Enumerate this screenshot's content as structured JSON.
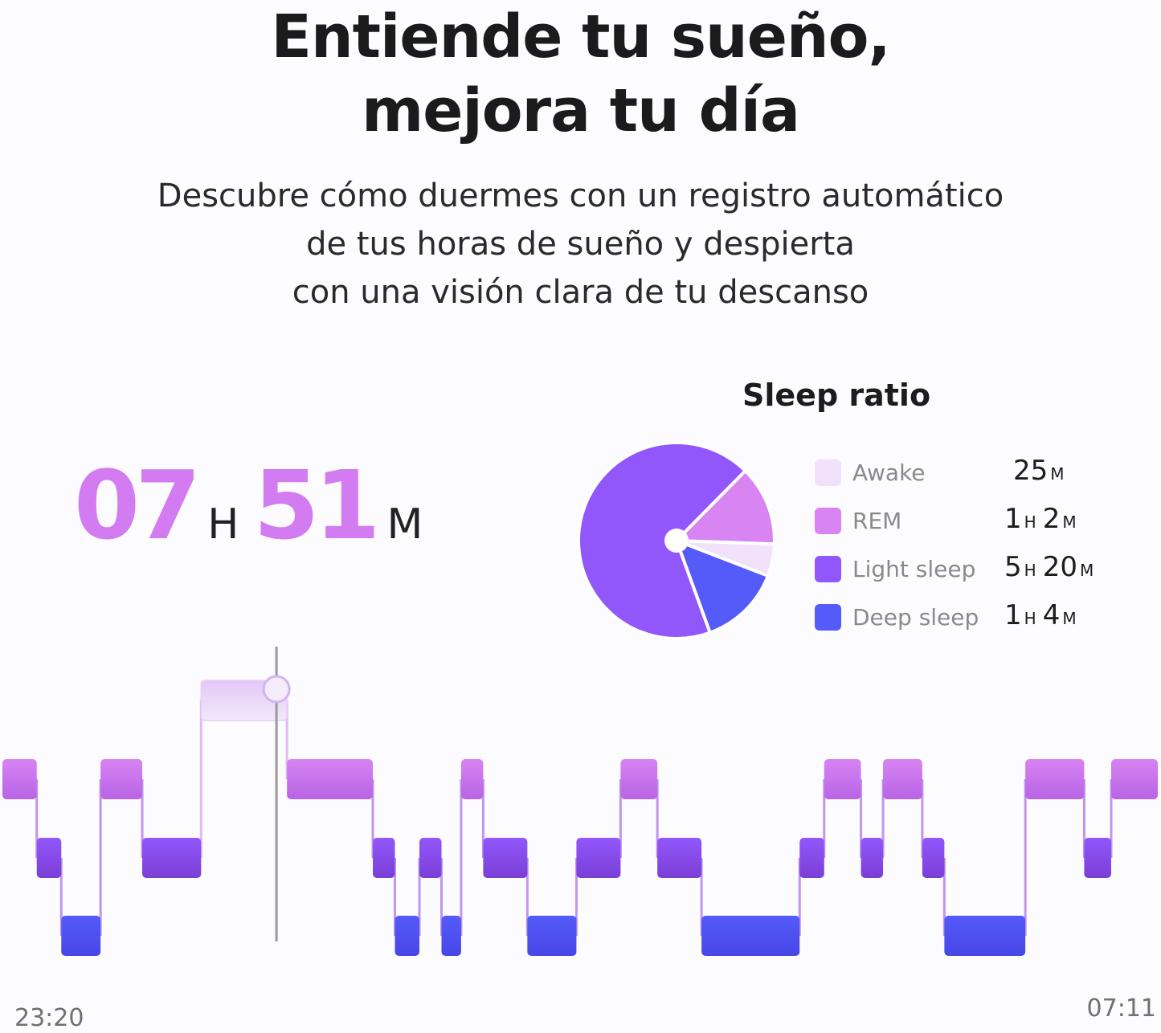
{
  "headline": {
    "line1": "Entiende tu sueño,",
    "line2": "mejora tu día"
  },
  "subhead": {
    "line1": "Descubre cómo duermes con un registro automático",
    "line2": "de tus horas de sueño y despierta",
    "line3": "con una visión clara de tu descanso"
  },
  "total_sleep": {
    "hours": "07",
    "hours_unit": "H",
    "minutes": "51",
    "minutes_unit": "M"
  },
  "colors": {
    "awake": "#f1e1fb",
    "rem": "#d884f3",
    "light": "#9257fb",
    "deep": "#545bf8",
    "rem_bar": "#b864e6",
    "light_bar": "#7a3fd6",
    "deep_bar": "#4846e6"
  },
  "chart_data": [
    {
      "type": "pie",
      "title": "Sleep ratio",
      "slices": [
        {
          "name": "Awake",
          "minutes": 25,
          "h": "",
          "h_unit": "",
          "m": "25",
          "m_unit": "M",
          "color": "#f1e1fb"
        },
        {
          "name": "REM",
          "minutes": 62,
          "h": "1",
          "h_unit": "H",
          "m": "2",
          "m_unit": "M",
          "color": "#d884f3"
        },
        {
          "name": "Light sleep",
          "minutes": 320,
          "h": "5",
          "h_unit": "H",
          "m": "20",
          "m_unit": "M",
          "color": "#9257fb"
        },
        {
          "name": "Deep sleep",
          "minutes": 64,
          "h": "1",
          "h_unit": "H",
          "m": "4",
          "m_unit": "M",
          "color": "#545bf8"
        }
      ]
    },
    {
      "type": "hypnogram",
      "x_start": "23:20",
      "x_end": "07:11",
      "levels": [
        "awake",
        "rem",
        "light",
        "deep"
      ],
      "cursor_time": "01:15",
      "segments": [
        {
          "stage": "rem",
          "start": "23:20",
          "end": "23:34"
        },
        {
          "stage": "light",
          "start": "23:34",
          "end": "23:44"
        },
        {
          "stage": "deep",
          "start": "23:44",
          "end": "00:00"
        },
        {
          "stage": "rem",
          "start": "00:00",
          "end": "00:17"
        },
        {
          "stage": "light",
          "start": "00:17",
          "end": "00:41"
        },
        {
          "stage": "awake",
          "start": "00:41",
          "end": "01:16"
        },
        {
          "stage": "rem",
          "start": "01:16",
          "end": "01:51"
        },
        {
          "stage": "light",
          "start": "01:51",
          "end": "02:00"
        },
        {
          "stage": "deep",
          "start": "02:00",
          "end": "02:10"
        },
        {
          "stage": "light",
          "start": "02:10",
          "end": "02:19"
        },
        {
          "stage": "deep",
          "start": "02:19",
          "end": "02:27"
        },
        {
          "stage": "rem",
          "start": "02:27",
          "end": "02:36"
        },
        {
          "stage": "light",
          "start": "02:36",
          "end": "02:54"
        },
        {
          "stage": "deep",
          "start": "02:54",
          "end": "03:14"
        },
        {
          "stage": "light",
          "start": "03:14",
          "end": "03:32"
        },
        {
          "stage": "rem",
          "start": "03:32",
          "end": "03:47"
        },
        {
          "stage": "light",
          "start": "03:47",
          "end": "04:05"
        },
        {
          "stage": "deep",
          "start": "04:05",
          "end": "04:45"
        },
        {
          "stage": "light",
          "start": "04:45",
          "end": "04:55"
        },
        {
          "stage": "rem",
          "start": "04:55",
          "end": "05:10"
        },
        {
          "stage": "light",
          "start": "05:10",
          "end": "05:19"
        },
        {
          "stage": "rem",
          "start": "05:19",
          "end": "05:35"
        },
        {
          "stage": "light",
          "start": "05:35",
          "end": "05:44"
        },
        {
          "stage": "deep",
          "start": "05:44",
          "end": "06:17"
        },
        {
          "stage": "rem",
          "start": "06:17",
          "end": "06:41"
        },
        {
          "stage": "light",
          "start": "06:41",
          "end": "06:52"
        },
        {
          "stage": "rem",
          "start": "06:52",
          "end": "07:11"
        }
      ]
    }
  ]
}
